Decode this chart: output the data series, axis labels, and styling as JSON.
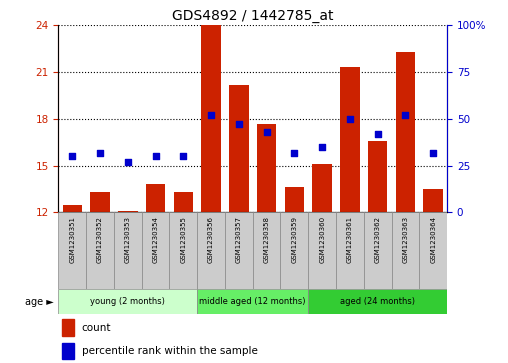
{
  "title": "GDS4892 / 1442785_at",
  "samples": [
    "GSM1230351",
    "GSM1230352",
    "GSM1230353",
    "GSM1230354",
    "GSM1230355",
    "GSM1230356",
    "GSM1230357",
    "GSM1230358",
    "GSM1230359",
    "GSM1230360",
    "GSM1230361",
    "GSM1230362",
    "GSM1230363",
    "GSM1230364"
  ],
  "counts": [
    12.5,
    13.3,
    12.1,
    13.8,
    13.3,
    24.0,
    20.2,
    17.7,
    13.6,
    15.1,
    21.3,
    16.6,
    22.3,
    13.5
  ],
  "percentiles": [
    30,
    32,
    27,
    30,
    30,
    52,
    47,
    43,
    32,
    35,
    50,
    42,
    52,
    32
  ],
  "ylim_left": [
    12,
    24
  ],
  "ylim_right": [
    0,
    100
  ],
  "yticks_left": [
    12,
    15,
    18,
    21,
    24
  ],
  "yticks_right": [
    0,
    25,
    50,
    75,
    100
  ],
  "bar_color": "#cc2200",
  "dot_color": "#0000cc",
  "bar_bottom": 12,
  "groups": [
    {
      "label": "young (2 months)",
      "start": 0,
      "end": 5,
      "color": "#ccffcc"
    },
    {
      "label": "middle aged (12 months)",
      "start": 5,
      "end": 9,
      "color": "#66ee66"
    },
    {
      "label": "aged (24 months)",
      "start": 9,
      "end": 14,
      "color": "#33cc33"
    }
  ],
  "legend_count_label": "count",
  "legend_percentile_label": "percentile rank within the sample",
  "age_label": "age",
  "tick_label_color_left": "#cc2200",
  "tick_label_color_right": "#0000cc",
  "label_box_color": "#cccccc",
  "bar_width": 0.7
}
